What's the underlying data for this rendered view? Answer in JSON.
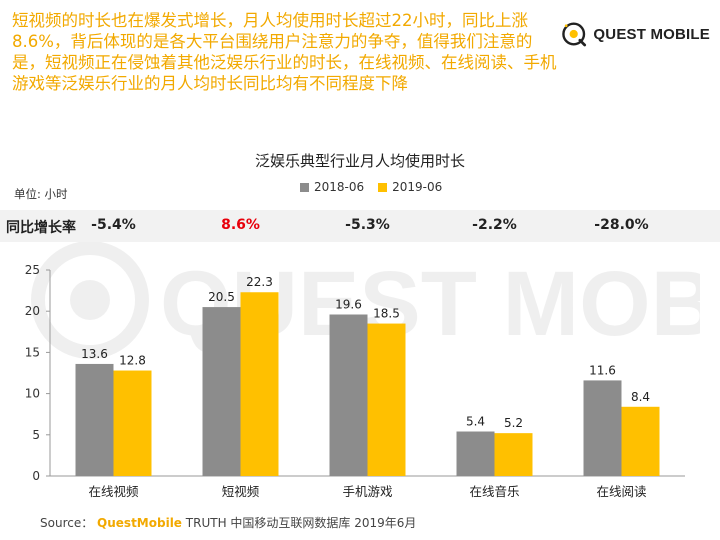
{
  "headline": "短视频的时长也在爆发式增长，月人均使用时长超过22小时，同比上涨8.6%，背后体现的是各大平台围绕用户注意力的争夺，值得我们注意的是，短视频正在侵蚀着其他泛娱乐行业的时长，在线视频、在线阅读、手机游戏等泛娱乐行业的月人均时长同比均有不同程度下降",
  "logo": {
    "text": "QUEST MOBILE",
    "watermark_text": "QUEST MOBILE"
  },
  "colors": {
    "series_2018": "#8c8c8c",
    "series_2019": "#ffc000",
    "accent": "#f2a900",
    "highlight": "#e8000b"
  },
  "yoy": {
    "label": "同比增长率",
    "values": [
      "-5.4%",
      "8.6%",
      "-5.3%",
      "-2.2%",
      "-28.0%"
    ],
    "highlight_index": 1
  },
  "chart_data": {
    "type": "bar",
    "title": "泛娱乐典型行业月人均使用时长",
    "unit_label": "单位: 小时",
    "categories": [
      "在线视频",
      "短视频",
      "手机游戏",
      "在线音乐",
      "在线阅读"
    ],
    "series": [
      {
        "name": "2018-06",
        "values": [
          13.6,
          20.5,
          19.6,
          5.4,
          11.6
        ]
      },
      {
        "name": "2019-06",
        "values": [
          12.8,
          22.3,
          18.5,
          5.2,
          8.4
        ]
      }
    ],
    "ylim": [
      0,
      25
    ],
    "yticks": [
      0,
      5,
      10,
      15,
      20,
      25
    ],
    "grid": false,
    "legend_position": "top"
  },
  "source": {
    "prefix": "Source：",
    "brand": "QuestMobile",
    "rest": "TRUTH 中国移动互联网数据库 2019年6月"
  }
}
